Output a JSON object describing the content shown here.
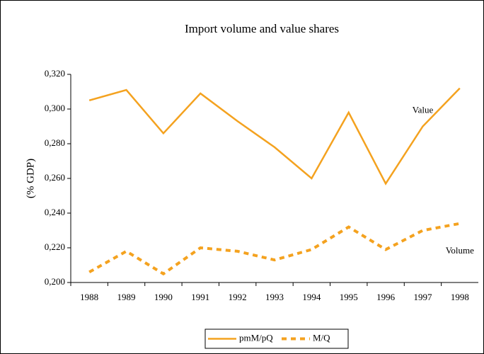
{
  "chart_data": {
    "type": "line",
    "title": "Import volume and value shares",
    "y_label": "(% GDP)",
    "categories": [
      "1988",
      "1989",
      "1990",
      "1991",
      "1992",
      "1993",
      "1994",
      "1995",
      "1996",
      "1997",
      "1998"
    ],
    "series": [
      {
        "name": "pmM/pQ",
        "color": "#f4a21f",
        "dash": "solid",
        "values": [
          0.305,
          0.311,
          0.286,
          0.309,
          0.293,
          0.278,
          0.26,
          0.298,
          0.257,
          0.29,
          0.312
        ]
      },
      {
        "name": "M/Q",
        "color": "#f4a21f",
        "dash": "dashed",
        "values": [
          0.206,
          0.218,
          0.205,
          0.22,
          0.218,
          0.213,
          0.219,
          0.232,
          0.219,
          0.23,
          0.234
        ]
      }
    ],
    "annotations": [
      {
        "text": "Value",
        "x": "1997",
        "y": 0.299
      },
      {
        "text": "Volume",
        "x": "1998",
        "y": 0.218
      }
    ],
    "ylim": [
      0.2,
      0.32
    ],
    "yticks": [
      {
        "value": 0.2,
        "label": "0,200"
      },
      {
        "value": 0.22,
        "label": "0,220"
      },
      {
        "value": 0.24,
        "label": "0,240"
      },
      {
        "value": 0.26,
        "label": "0,260"
      },
      {
        "value": 0.28,
        "label": "0,280"
      },
      {
        "value": 0.3,
        "label": "0,300"
      },
      {
        "value": 0.32,
        "label": "0,320"
      }
    ],
    "legend": "bottom"
  }
}
